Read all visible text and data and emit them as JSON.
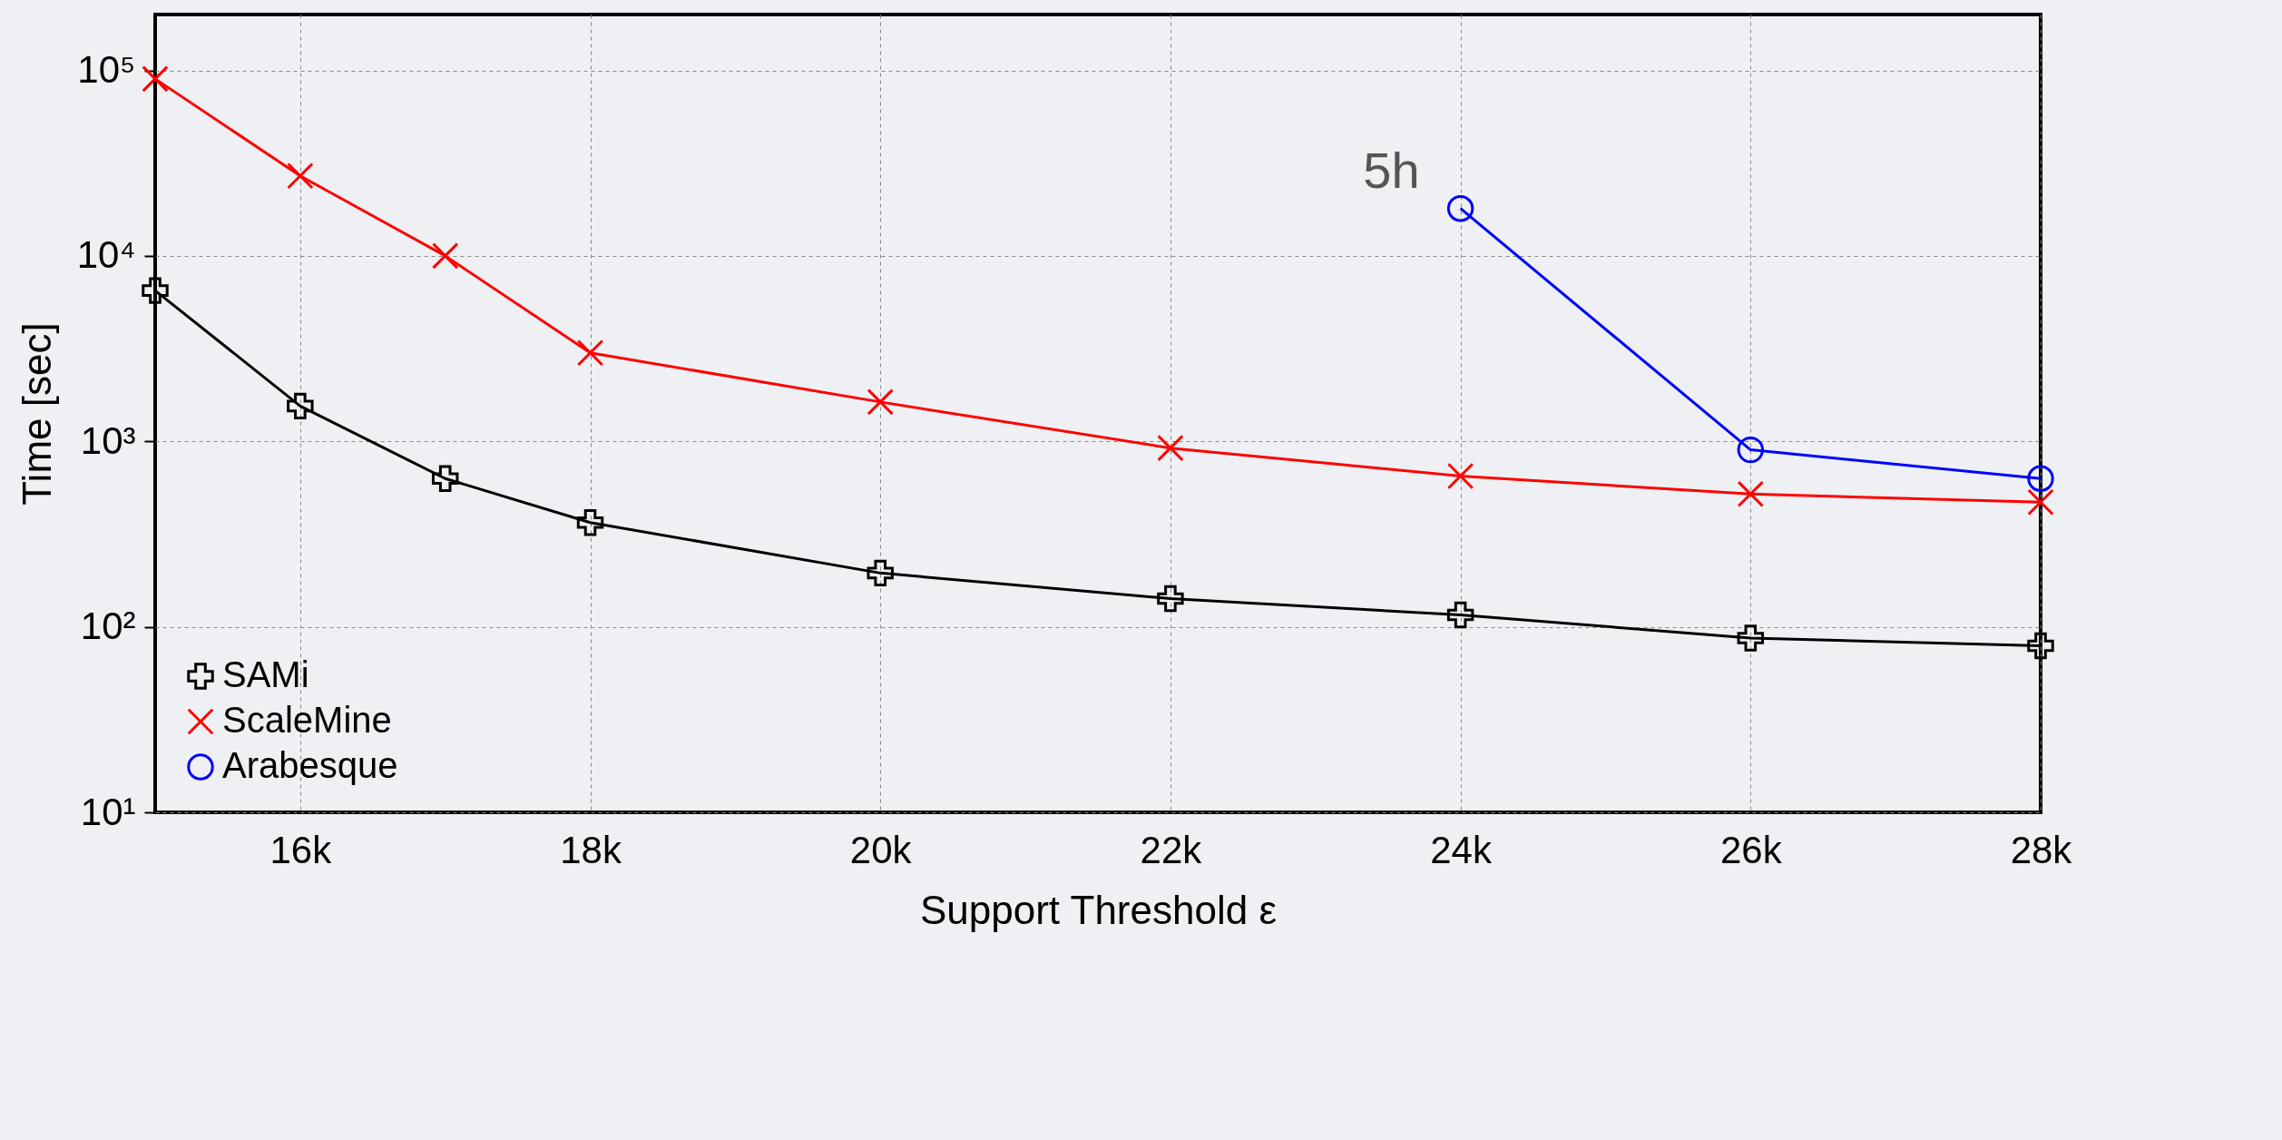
{
  "chart_data": {
    "type": "line",
    "xlabel": "Support Threshold ε",
    "ylabel": "Time [sec]",
    "log": "y",
    "grid": true,
    "legend": "bottom left",
    "line_style": "solid",
    "x": [
      15000,
      16000,
      17000,
      18000,
      20000,
      22000,
      24000,
      26000,
      28000
    ],
    "xlim": [
      15000,
      28000
    ],
    "xticks": [
      {
        "value": 16000,
        "label": "16k"
      },
      {
        "value": 18000,
        "label": "18k"
      },
      {
        "value": 20000,
        "label": "20k"
      },
      {
        "value": 22000,
        "label": "22k"
      },
      {
        "value": 24000,
        "label": "24k"
      },
      {
        "value": 26000,
        "label": "26k"
      },
      {
        "value": 28000,
        "label": "28k"
      }
    ],
    "ylim": [
      10,
      200000
    ],
    "yticks": [
      {
        "value": 10,
        "label": "10¹"
      },
      {
        "value": 100,
        "label": "10²"
      },
      {
        "value": 1000,
        "label": "10³"
      },
      {
        "value": 10000,
        "label": "10⁴"
      },
      {
        "value": 100000,
        "label": "10⁵"
      }
    ],
    "series": [
      {
        "name": "SAMi",
        "color": "#000000",
        "marker": "cross",
        "values": [
          6500,
          1550,
          630,
          365,
          195,
          142,
          116,
          87,
          79
        ]
      },
      {
        "name": "ScaleMine",
        "color": "#ff0000",
        "marker": "x",
        "values": [
          90000,
          27000,
          10000,
          3000,
          1630,
          920,
          650,
          520,
          470
        ]
      },
      {
        "name": "Arabesque",
        "color": "#0000ff",
        "marker": "circle",
        "values": [
          null,
          null,
          null,
          null,
          null,
          null,
          18000,
          900,
          630
        ]
      }
    ],
    "annotations": [
      {
        "text": "5h",
        "x": 24000,
        "y": 18000
      }
    ]
  }
}
